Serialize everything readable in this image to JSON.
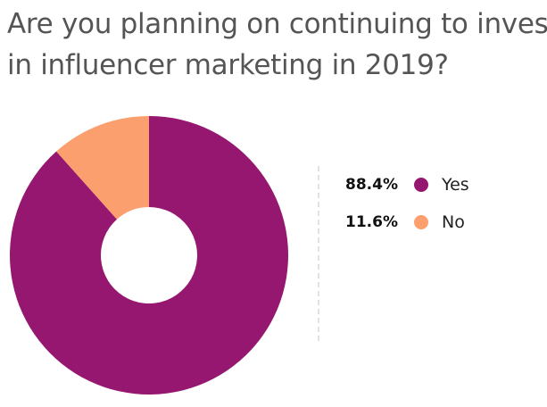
{
  "chart_data": {
    "type": "pie",
    "style": "donut",
    "title_lines": [
      "Are you planning on continuing to invest",
      "in influencer marketing in 2019?"
    ],
    "slices": [
      {
        "label": "Yes",
        "value": 88.4,
        "display": "88.4%",
        "color": "#96176f"
      },
      {
        "label": "No",
        "value": 11.6,
        "display": "11.6%",
        "color": "#fb9f6f"
      }
    ],
    "legend_position": "right"
  }
}
